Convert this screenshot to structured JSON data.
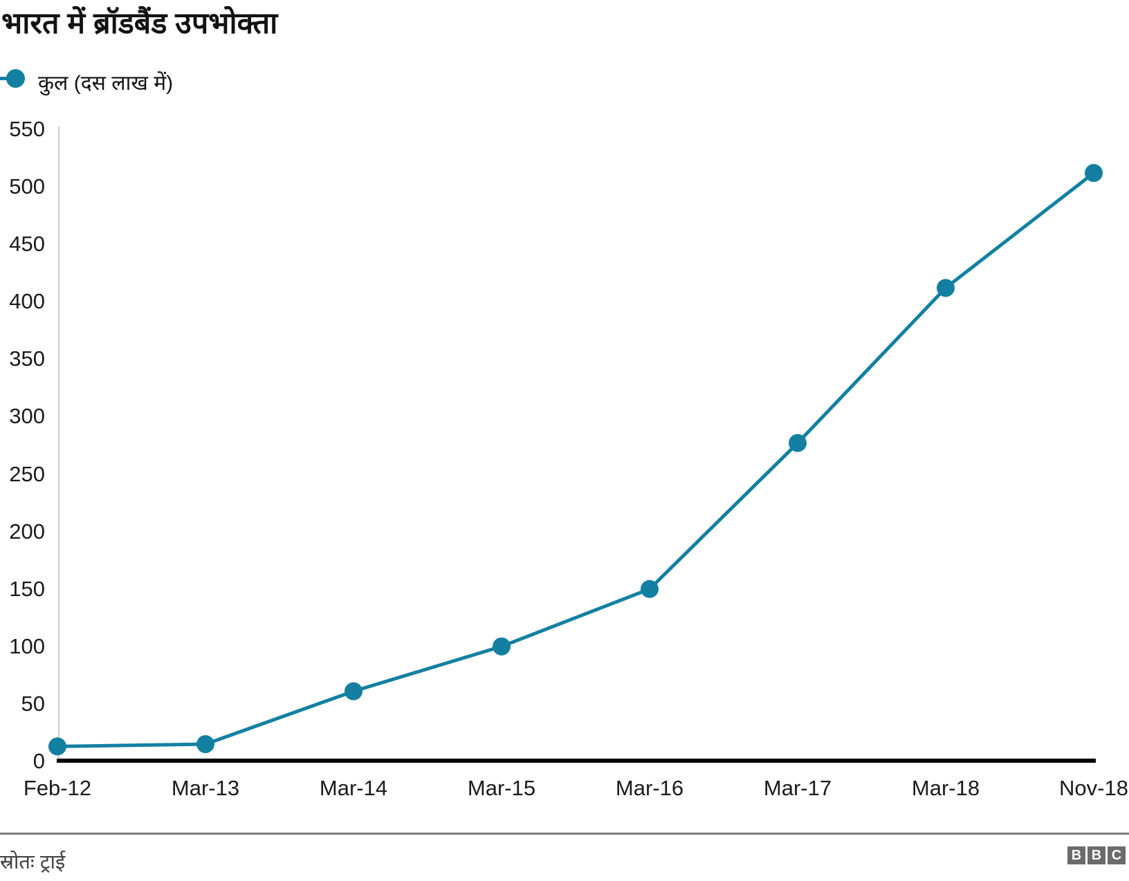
{
  "title": "भारत में ब्रॉडबैंड उपभोक्ता",
  "legend": {
    "label": "कुल (दस लाख में)"
  },
  "chart_data": {
    "type": "line",
    "title": "भारत में ब्रॉडबैंड उपभोक्ता",
    "categories": [
      "Feb-12",
      "Mar-13",
      "Mar-14",
      "Mar-15",
      "Mar-16",
      "Mar-17",
      "Mar-18",
      "Nov-18"
    ],
    "series": [
      {
        "name": "कुल (दस लाख में)",
        "values": [
          13,
          15,
          61,
          100,
          150,
          277,
          412,
          512
        ]
      }
    ],
    "xlabel": "",
    "ylabel": "",
    "ylim": [
      0,
      550
    ],
    "yticks": [
      0,
      50,
      100,
      150,
      200,
      250,
      300,
      350,
      400,
      450,
      500,
      550
    ],
    "grid": false,
    "legend_position": "top-left",
    "line_color": "#1380A1"
  },
  "footer": {
    "source": "स्रोतः ट्राई",
    "logo_letters": [
      "B",
      "B",
      "C"
    ]
  },
  "colors": {
    "accent": "#1380A1",
    "axis_line": "#000000",
    "y_axis_line": "#cccccc",
    "divider": "#7d7d7d",
    "text": "#121212",
    "source_text": "#404040",
    "logo_bg": "#6b6b6b"
  }
}
